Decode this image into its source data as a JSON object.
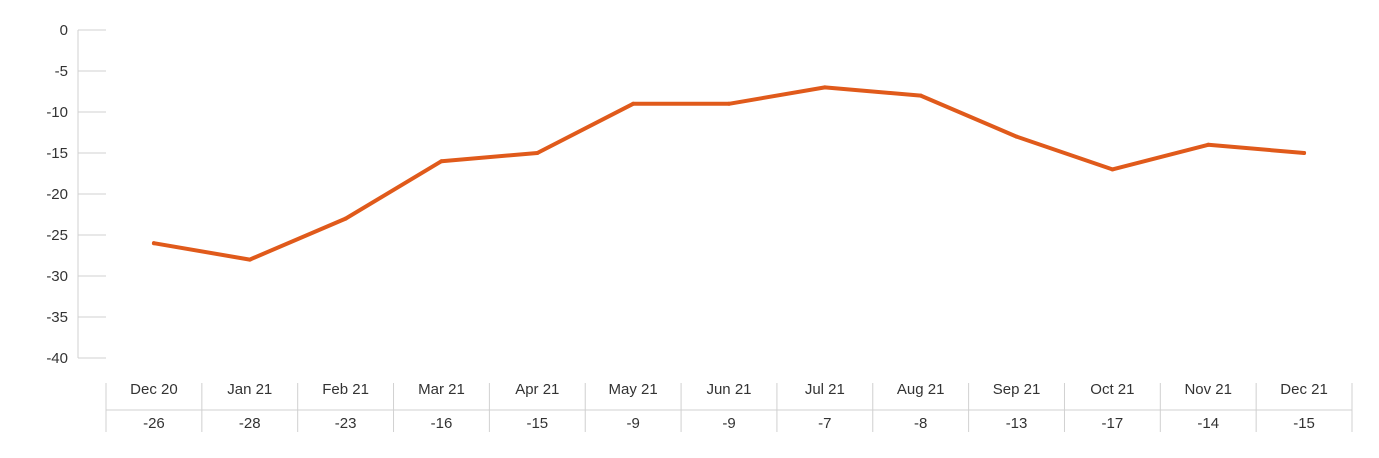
{
  "chart_data": {
    "type": "line",
    "title": "",
    "xlabel": "",
    "ylabel": "",
    "categories": [
      "Dec 20",
      "Jan 21",
      "Feb 21",
      "Mar 21",
      "Apr 21",
      "May 21",
      "Jun 21",
      "Jul 21",
      "Aug 21",
      "Sep 21",
      "Oct 21",
      "Nov 21",
      "Dec 21"
    ],
    "values": [
      -26,
      -28,
      -23,
      -16,
      -15,
      -9,
      -9,
      -7,
      -8,
      -13,
      -17,
      -14,
      -15
    ],
    "value_labels": [
      "-26",
      "-28",
      "-23",
      "-16",
      "-15",
      "-9",
      "-9",
      "-7",
      "-8",
      "-13",
      "-17",
      "-14",
      "-15"
    ],
    "ylim": [
      -40,
      0
    ],
    "yticks": [
      0,
      -5,
      -10,
      -15,
      -20,
      -25,
      -30,
      -35,
      -40
    ],
    "ytick_labels": [
      "0",
      "-5",
      "-10",
      "-15",
      "-20",
      "-25",
      "-30",
      "-35",
      "-40"
    ],
    "grid": false,
    "line_color": "#E05A1B",
    "axis_color": "#d0d0d0"
  }
}
